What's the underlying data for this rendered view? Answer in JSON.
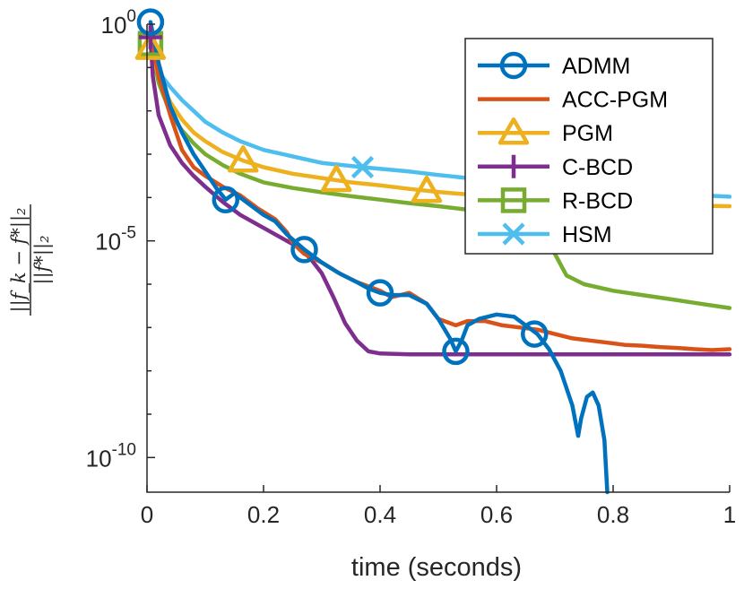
{
  "chart_data": {
    "type": "line",
    "title": "",
    "xlabel": "time (seconds)",
    "ylabel": "||f_k - f*||_2 / ||f*||_2",
    "ylabel_numerator": "||f_k − f*||₂",
    "ylabel_denominator": "||f*||₂",
    "xscale": "linear",
    "yscale": "log",
    "xlim": [
      0,
      1
    ],
    "ylim_log10": [
      -10.8,
      0
    ],
    "xticks": [
      0,
      0.2,
      0.4,
      0.6,
      0.8,
      1
    ],
    "xtick_labels": [
      "0",
      "0.2",
      "0.4",
      "0.6",
      "0.8",
      "1"
    ],
    "yticks": [
      {
        "base": "10",
        "exp": "0",
        "log10": 0
      },
      {
        "base": "10",
        "exp": "-5",
        "log10": -5
      },
      {
        "base": "10",
        "exp": "-10",
        "log10": -10
      }
    ],
    "legend_location": "top-right",
    "series": [
      {
        "name": "ADMM",
        "color": "#0072BD",
        "marker": "circle",
        "markers_at": [
          [
            0.006,
            0.05
          ],
          [
            0.135,
            -4.05
          ],
          [
            0.27,
            -5.2
          ],
          [
            0.4,
            -6.2
          ],
          [
            0.53,
            -7.55
          ],
          [
            0.665,
            -7.15
          ]
        ],
        "points": [
          [
            0.006,
            0.05
          ],
          [
            0.02,
            -0.9
          ],
          [
            0.04,
            -1.9
          ],
          [
            0.06,
            -2.5
          ],
          [
            0.08,
            -3.0
          ],
          [
            0.1,
            -3.4
          ],
          [
            0.12,
            -3.8
          ],
          [
            0.135,
            -4.05
          ],
          [
            0.15,
            -3.9
          ],
          [
            0.17,
            -4.1
          ],
          [
            0.2,
            -4.4
          ],
          [
            0.22,
            -4.55
          ],
          [
            0.24,
            -4.85
          ],
          [
            0.27,
            -5.2
          ],
          [
            0.3,
            -5.5
          ],
          [
            0.33,
            -5.75
          ],
          [
            0.36,
            -5.95
          ],
          [
            0.38,
            -6.1
          ],
          [
            0.4,
            -6.2
          ],
          [
            0.42,
            -6.25
          ],
          [
            0.45,
            -6.25
          ],
          [
            0.48,
            -6.45
          ],
          [
            0.5,
            -6.8
          ],
          [
            0.52,
            -7.25
          ],
          [
            0.53,
            -7.55
          ],
          [
            0.54,
            -7.3
          ],
          [
            0.55,
            -6.95
          ],
          [
            0.57,
            -6.8
          ],
          [
            0.6,
            -6.7
          ],
          [
            0.63,
            -6.75
          ],
          [
            0.65,
            -6.95
          ],
          [
            0.67,
            -7.15
          ],
          [
            0.69,
            -7.5
          ],
          [
            0.71,
            -8.0
          ],
          [
            0.73,
            -8.8
          ],
          [
            0.74,
            -9.5
          ],
          [
            0.745,
            -9.1
          ],
          [
            0.755,
            -8.6
          ],
          [
            0.765,
            -8.5
          ],
          [
            0.775,
            -8.8
          ],
          [
            0.785,
            -9.6
          ],
          [
            0.79,
            -10.8
          ]
        ]
      },
      {
        "name": "ACC-PGM",
        "color": "#D95319",
        "marker": "none",
        "points": [
          [
            0.006,
            -0.2
          ],
          [
            0.02,
            -1.2
          ],
          [
            0.04,
            -2.1
          ],
          [
            0.06,
            -2.9
          ],
          [
            0.08,
            -3.3
          ],
          [
            0.1,
            -3.5
          ],
          [
            0.13,
            -3.75
          ],
          [
            0.16,
            -3.95
          ],
          [
            0.19,
            -4.25
          ],
          [
            0.22,
            -4.5
          ],
          [
            0.24,
            -4.8
          ],
          [
            0.25,
            -5.05
          ],
          [
            0.27,
            -5.3
          ],
          [
            0.3,
            -5.5
          ],
          [
            0.33,
            -5.75
          ],
          [
            0.36,
            -5.95
          ],
          [
            0.38,
            -6.05
          ],
          [
            0.4,
            -6.15
          ],
          [
            0.42,
            -6.3
          ],
          [
            0.45,
            -6.2
          ],
          [
            0.48,
            -6.45
          ],
          [
            0.5,
            -6.8
          ],
          [
            0.53,
            -6.95
          ],
          [
            0.55,
            -6.85
          ],
          [
            0.58,
            -6.85
          ],
          [
            0.61,
            -6.95
          ],
          [
            0.64,
            -7.0
          ],
          [
            0.67,
            -7.05
          ],
          [
            0.7,
            -7.15
          ],
          [
            0.73,
            -7.25
          ],
          [
            0.76,
            -7.3
          ],
          [
            0.79,
            -7.35
          ],
          [
            0.82,
            -7.4
          ],
          [
            0.85,
            -7.42
          ],
          [
            0.88,
            -7.45
          ],
          [
            0.91,
            -7.47
          ],
          [
            0.94,
            -7.5
          ],
          [
            0.97,
            -7.52
          ],
          [
            1.0,
            -7.5
          ]
        ]
      },
      {
        "name": "PGM",
        "color": "#EDB120",
        "marker": "triangle",
        "markers_at": [
          [
            0.006,
            -0.55
          ],
          [
            0.165,
            -3.15
          ],
          [
            0.325,
            -3.6
          ],
          [
            0.48,
            -3.85
          ]
        ],
        "points": [
          [
            0.006,
            -0.55
          ],
          [
            0.02,
            -1.2
          ],
          [
            0.04,
            -1.8
          ],
          [
            0.06,
            -2.2
          ],
          [
            0.08,
            -2.5
          ],
          [
            0.1,
            -2.7
          ],
          [
            0.13,
            -2.95
          ],
          [
            0.165,
            -3.15
          ],
          [
            0.2,
            -3.3
          ],
          [
            0.25,
            -3.45
          ],
          [
            0.3,
            -3.55
          ],
          [
            0.35,
            -3.65
          ],
          [
            0.4,
            -3.72
          ],
          [
            0.45,
            -3.8
          ],
          [
            0.5,
            -3.87
          ],
          [
            0.55,
            -3.93
          ],
          [
            0.6,
            -3.98
          ],
          [
            0.65,
            -4.02
          ],
          [
            0.7,
            -4.06
          ],
          [
            0.75,
            -4.09
          ],
          [
            0.8,
            -4.12
          ],
          [
            0.85,
            -4.15
          ],
          [
            0.9,
            -4.17
          ],
          [
            0.95,
            -4.19
          ],
          [
            1.0,
            -4.2
          ]
        ]
      },
      {
        "name": "C-BCD",
        "color": "#7E2F8E",
        "marker": "plus",
        "markers_at": [
          [
            0.006,
            -0.3
          ]
        ],
        "points": [
          [
            0.006,
            -0.3
          ],
          [
            0.01,
            -1.2
          ],
          [
            0.02,
            -2.1
          ],
          [
            0.04,
            -2.8
          ],
          [
            0.06,
            -3.2
          ],
          [
            0.08,
            -3.5
          ],
          [
            0.1,
            -3.75
          ],
          [
            0.13,
            -4.1
          ],
          [
            0.16,
            -4.4
          ],
          [
            0.2,
            -4.7
          ],
          [
            0.24,
            -5.0
          ],
          [
            0.26,
            -5.15
          ],
          [
            0.28,
            -5.4
          ],
          [
            0.3,
            -5.75
          ],
          [
            0.32,
            -6.3
          ],
          [
            0.34,
            -6.9
          ],
          [
            0.36,
            -7.3
          ],
          [
            0.38,
            -7.55
          ],
          [
            0.4,
            -7.6
          ],
          [
            0.45,
            -7.62
          ],
          [
            0.5,
            -7.62
          ],
          [
            0.6,
            -7.62
          ],
          [
            0.7,
            -7.62
          ],
          [
            0.8,
            -7.62
          ],
          [
            0.9,
            -7.62
          ],
          [
            1.0,
            -7.62
          ]
        ]
      },
      {
        "name": "R-BCD",
        "color": "#77AC30",
        "marker": "square",
        "markers_at": [
          [
            0.006,
            -0.45
          ]
        ],
        "points": [
          [
            0.006,
            -0.45
          ],
          [
            0.02,
            -1.35
          ],
          [
            0.04,
            -2.05
          ],
          [
            0.06,
            -2.45
          ],
          [
            0.08,
            -2.75
          ],
          [
            0.1,
            -3.0
          ],
          [
            0.13,
            -3.25
          ],
          [
            0.16,
            -3.45
          ],
          [
            0.2,
            -3.65
          ],
          [
            0.25,
            -3.78
          ],
          [
            0.3,
            -3.88
          ],
          [
            0.35,
            -3.97
          ],
          [
            0.4,
            -4.05
          ],
          [
            0.45,
            -4.13
          ],
          [
            0.5,
            -4.2
          ],
          [
            0.55,
            -4.28
          ],
          [
            0.6,
            -4.38
          ],
          [
            0.65,
            -4.5
          ],
          [
            0.68,
            -4.75
          ],
          [
            0.7,
            -5.3
          ],
          [
            0.72,
            -5.8
          ],
          [
            0.75,
            -6.0
          ],
          [
            0.8,
            -6.15
          ],
          [
            0.85,
            -6.25
          ],
          [
            0.9,
            -6.35
          ],
          [
            0.95,
            -6.45
          ],
          [
            1.0,
            -6.55
          ]
        ]
      },
      {
        "name": "HSM",
        "color": "#4DBEEE",
        "marker": "x",
        "markers_at": [
          [
            0.37,
            -3.3
          ]
        ],
        "points": [
          [
            0.006,
            -0.65
          ],
          [
            0.02,
            -1.1
          ],
          [
            0.04,
            -1.45
          ],
          [
            0.06,
            -1.75
          ],
          [
            0.08,
            -2.0
          ],
          [
            0.1,
            -2.25
          ],
          [
            0.13,
            -2.5
          ],
          [
            0.16,
            -2.7
          ],
          [
            0.2,
            -2.9
          ],
          [
            0.25,
            -3.05
          ],
          [
            0.3,
            -3.2
          ],
          [
            0.37,
            -3.3
          ],
          [
            0.45,
            -3.4
          ],
          [
            0.5,
            -3.48
          ],
          [
            0.55,
            -3.55
          ],
          [
            0.6,
            -3.62
          ],
          [
            0.65,
            -3.68
          ],
          [
            0.7,
            -3.74
          ],
          [
            0.75,
            -3.8
          ],
          [
            0.8,
            -3.84
          ],
          [
            0.85,
            -3.88
          ],
          [
            0.9,
            -3.92
          ],
          [
            0.95,
            -3.95
          ],
          [
            1.0,
            -3.98
          ]
        ]
      }
    ]
  }
}
